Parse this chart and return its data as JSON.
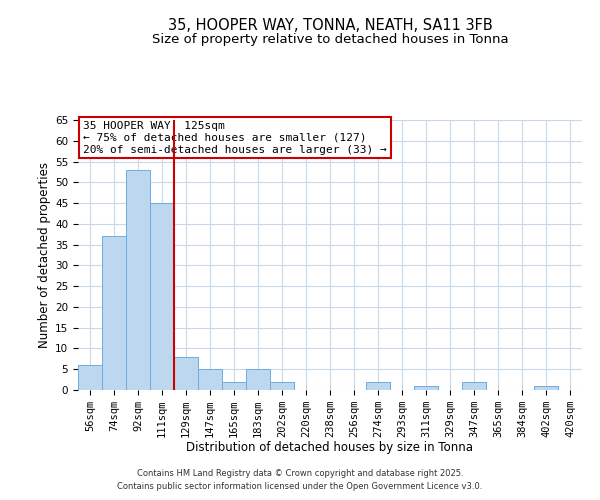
{
  "title": "35, HOOPER WAY, TONNA, NEATH, SA11 3FB",
  "subtitle": "Size of property relative to detached houses in Tonna",
  "xlabel": "Distribution of detached houses by size in Tonna",
  "ylabel": "Number of detached properties",
  "bar_labels": [
    "56sqm",
    "74sqm",
    "92sqm",
    "111sqm",
    "129sqm",
    "147sqm",
    "165sqm",
    "183sqm",
    "202sqm",
    "220sqm",
    "238sqm",
    "256sqm",
    "274sqm",
    "293sqm",
    "311sqm",
    "329sqm",
    "347sqm",
    "365sqm",
    "384sqm",
    "402sqm",
    "420sqm"
  ],
  "bar_values": [
    6,
    37,
    53,
    45,
    8,
    5,
    2,
    5,
    2,
    0,
    0,
    0,
    2,
    0,
    1,
    0,
    2,
    0,
    0,
    1,
    0
  ],
  "bar_color": "#bdd7ee",
  "bar_edgecolor": "#6aade4",
  "vline_color": "#cc0000",
  "annotation_title": "35 HOOPER WAY: 125sqm",
  "annotation_line1": "← 75% of detached houses are smaller (127)",
  "annotation_line2": "20% of semi-detached houses are larger (33) →",
  "annotation_box_edgecolor": "#cc0000",
  "ylim": [
    0,
    65
  ],
  "yticks": [
    0,
    5,
    10,
    15,
    20,
    25,
    30,
    35,
    40,
    45,
    50,
    55,
    60,
    65
  ],
  "background_color": "#ffffff",
  "grid_color": "#c8d8ea",
  "footer1": "Contains HM Land Registry data © Crown copyright and database right 2025.",
  "footer2": "Contains public sector information licensed under the Open Government Licence v3.0.",
  "title_fontsize": 10.5,
  "subtitle_fontsize": 9.5,
  "axis_label_fontsize": 8.5,
  "tick_fontsize": 7.5,
  "annotation_fontsize": 8
}
